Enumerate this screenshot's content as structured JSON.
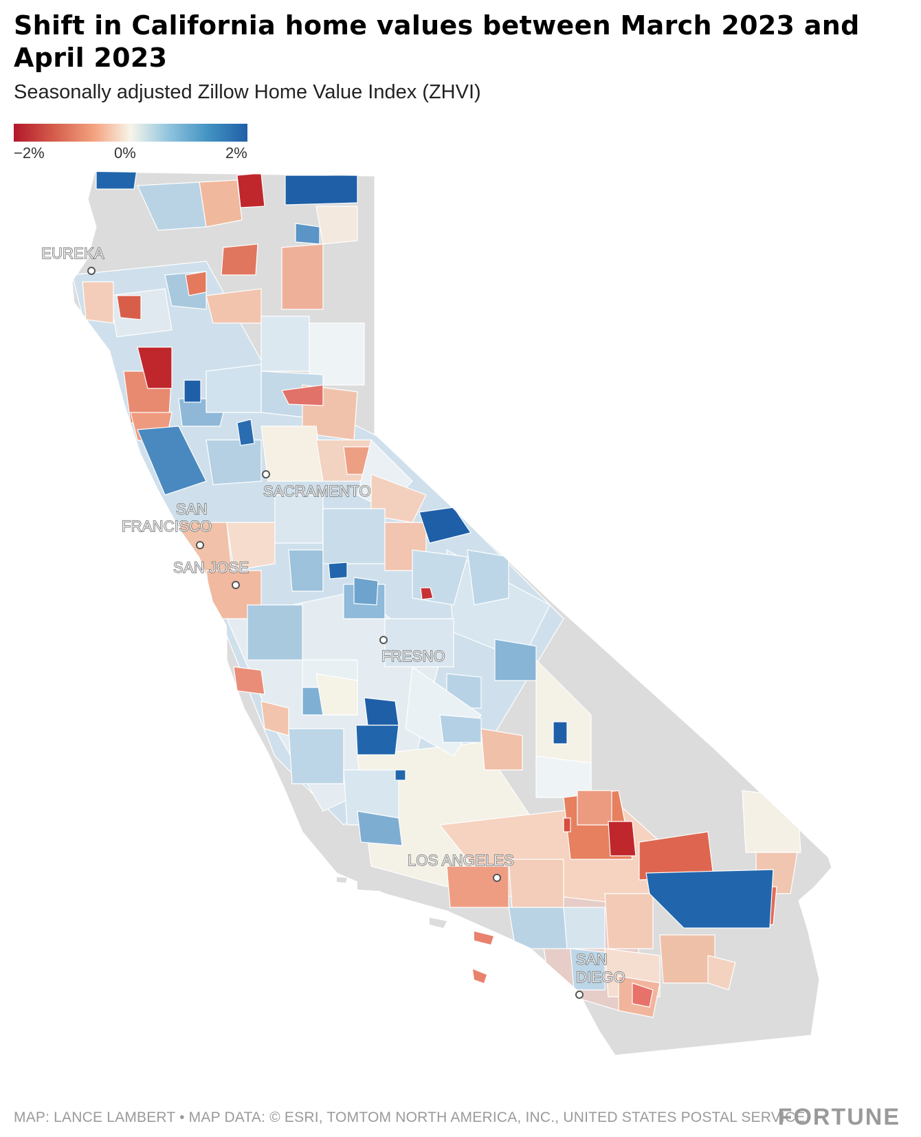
{
  "header": {
    "title": "Shift in California home values between March 2023 and April 2023",
    "subtitle": "Seasonally adjusted Zillow Home Value Index (ZHVI)"
  },
  "legend": {
    "ticks": [
      "−2%",
      "0%",
      "2%"
    ],
    "scale_colors": [
      "#b2182b",
      "#d6604d",
      "#f4a582",
      "#f7f5ea",
      "#92c5de",
      "#4393c3",
      "#1f5fa8"
    ],
    "no_data_color": "#dcdcdc"
  },
  "map": {
    "region": "California",
    "cities": [
      "EUREKA",
      "SACRAMENTO",
      "SAN FRANCISCO",
      "SAN JOSE",
      "FRESNO",
      "LOS ANGELES",
      "SAN DIEGO"
    ]
  },
  "footer": {
    "credit": "MAP: LANCE LAMBERT • MAP DATA: © ESRI, TOMTOM NORTH AMERICA, INC., UNITED STATES POSTAL SERVICE",
    "logo": "FORTUNE"
  }
}
